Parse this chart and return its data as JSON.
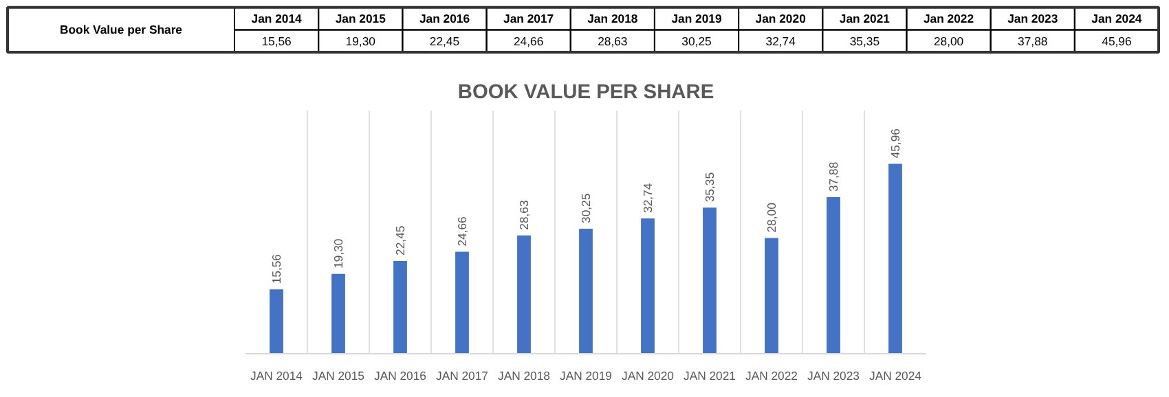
{
  "chart_data": [
    {
      "type": "other",
      "categories": [
        "Jan 2014",
        "Jan 2015",
        "Jan 2016",
        "Jan 2017",
        "Jan 2018",
        "Jan 2019",
        "Jan 2020",
        "Jan 2021",
        "Jan 2022",
        "Jan 2023",
        "Jan 2024"
      ],
      "y_categories": [
        "Book Value per Share"
      ],
      "cell_labels": [
        [
          "15,56",
          "19,30",
          "22,45",
          "24,66",
          "28,63",
          "30,25",
          "32,74",
          "35,35",
          "28,00",
          "37,88",
          "45,96"
        ]
      ]
    },
    {
      "type": "bar",
      "title": "BOOK VALUE PER SHARE",
      "categories": [
        "JAN 2014",
        "JAN 2015",
        "JAN 2016",
        "JAN 2017",
        "JAN 2018",
        "JAN 2019",
        "JAN 2020",
        "JAN 2021",
        "JAN 2022",
        "JAN 2023",
        "JAN 2024"
      ],
      "values": [
        15.56,
        19.3,
        22.45,
        24.66,
        28.63,
        30.25,
        32.74,
        35.35,
        28.0,
        37.88,
        45.96
      ],
      "value_labels": [
        "15,56",
        "19,30",
        "22,45",
        "24,66",
        "28,63",
        "30,25",
        "32,74",
        "35,35",
        "28,00",
        "37,88",
        "45,96"
      ],
      "color": "#4472c4",
      "grid": "x"
    }
  ]
}
